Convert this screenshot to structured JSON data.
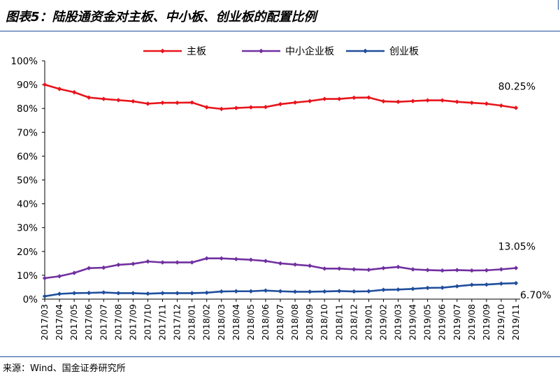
{
  "title": "图表5：陆股通资金对主板、中小板、创业板的配置比例",
  "source": "来源：Wind、国金证券研究所",
  "chart_data": {
    "type": "line",
    "categories": [
      "2017/03",
      "2017/04",
      "2017/05",
      "2017/06",
      "2017/07",
      "2017/08",
      "2017/09",
      "2017/10",
      "2017/11",
      "2017/12",
      "2018/01",
      "2018/02",
      "2018/03",
      "2018/04",
      "2018/05",
      "2018/06",
      "2018/07",
      "2018/08",
      "2018/09",
      "2018/10",
      "2018/11",
      "2018/12",
      "2019/01",
      "2019/02",
      "2019/03",
      "2019/04",
      "2019/05",
      "2019/06",
      "2019/07",
      "2019/08",
      "2019/09",
      "2019/10",
      "2019/11"
    ],
    "y_ticks": [
      "100%",
      "90%",
      "80%",
      "70%",
      "60%",
      "50%",
      "40%",
      "30%",
      "20%",
      "10%",
      "0%"
    ],
    "ylim": [
      0,
      100
    ],
    "legend_position": "top-center",
    "grid": false,
    "series": [
      {
        "name": "主板",
        "color": "#e8141b",
        "values": [
          90.0,
          88.2,
          86.8,
          84.6,
          84.0,
          83.5,
          83.0,
          82.0,
          82.4,
          82.4,
          82.5,
          80.5,
          79.8,
          80.2,
          80.5,
          80.6,
          81.8,
          82.5,
          83.1,
          84.0,
          84.0,
          84.5,
          84.6,
          83.0,
          82.8,
          83.1,
          83.4,
          83.4,
          82.8,
          82.4,
          82.0,
          81.2,
          80.25
        ],
        "end_label": "80.25%"
      },
      {
        "name": "中小企业板",
        "color": "#7030a0",
        "values": [
          8.8,
          9.6,
          11.0,
          13.0,
          13.2,
          14.4,
          14.8,
          15.8,
          15.4,
          15.4,
          15.4,
          17.1,
          17.1,
          16.8,
          16.5,
          16.0,
          15.0,
          14.5,
          14.0,
          12.8,
          12.8,
          12.5,
          12.3,
          13.0,
          13.5,
          12.5,
          12.2,
          12.0,
          12.2,
          12.0,
          12.1,
          12.5,
          13.05
        ],
        "end_label": "13.05%"
      },
      {
        "name": "创业板",
        "color": "#1f4e9c",
        "values": [
          1.2,
          2.2,
          2.5,
          2.6,
          2.8,
          2.5,
          2.5,
          2.3,
          2.5,
          2.5,
          2.5,
          2.7,
          3.2,
          3.3,
          3.3,
          3.6,
          3.3,
          3.1,
          3.1,
          3.2,
          3.4,
          3.2,
          3.3,
          3.9,
          4.0,
          4.3,
          4.7,
          4.8,
          5.4,
          6.0,
          6.1,
          6.5,
          6.7
        ],
        "end_label": "6.70%"
      }
    ]
  }
}
